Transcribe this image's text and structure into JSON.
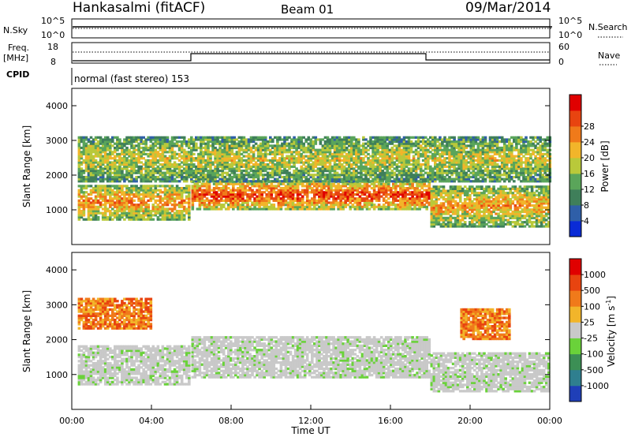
{
  "header": {
    "station": "Hankasalmi (fitACF)",
    "beam": "Beam 01",
    "date": "09/Mar/2014"
  },
  "aux_panels": {
    "nsky_label": "N.Sky",
    "nsky_ticks": [
      "10^5",
      "10^0"
    ],
    "nsearch_label": "N.Search",
    "nsearch_ticks": [
      "10^5",
      "10^0"
    ],
    "freq_label": "Freq.",
    "freq_unit": "[MHz]",
    "freq_ticks": [
      "18",
      "8"
    ],
    "nave_label": "Nave",
    "nave_ticks": [
      "60",
      "0"
    ],
    "cpid_label": "CPID",
    "cpid_text": "normal (fast stereo) 153"
  },
  "chart_data": [
    {
      "type": "heatmap",
      "name": "power",
      "ylabel": "Slant Range [km]",
      "xlabel": "",
      "ylim": [
        0,
        4500
      ],
      "yticks": [
        "1000",
        "2000",
        "3000",
        "4000"
      ],
      "ytick_values": [
        1000,
        2000,
        3000,
        4000
      ],
      "xlim": [
        0,
        24
      ],
      "colorbar": {
        "label": "Power [dB]",
        "ticks": [
          "4",
          "8",
          "12",
          "16",
          "20",
          "24",
          "28"
        ],
        "colors": [
          "#0a2bd6",
          "#2f5fa8",
          "#3f7f5a",
          "#5aa55a",
          "#b9c93a",
          "#f2b52a",
          "#f07a1a",
          "#e84410",
          "#e00000"
        ]
      },
      "bands": [
        {
          "x": [
            0.3,
            5.9
          ],
          "y": [
            700,
            1700
          ],
          "level": 0.75
        },
        {
          "x": [
            6.0,
            17.9
          ],
          "y": [
            1000,
            1800
          ],
          "level": 0.92
        },
        {
          "x": [
            18.0,
            24.0
          ],
          "y": [
            500,
            1700
          ],
          "level": 0.7
        },
        {
          "x": [
            0.3,
            24.0
          ],
          "y": [
            1800,
            3100
          ],
          "level": 0.55
        }
      ]
    },
    {
      "type": "heatmap",
      "name": "velocity",
      "ylabel": "Slant Range [km]",
      "xlabel": "Time UT",
      "ylim": [
        0,
        4500
      ],
      "yticks": [
        "1000",
        "2000",
        "3000",
        "4000"
      ],
      "ytick_values": [
        1000,
        2000,
        3000,
        4000
      ],
      "xlim": [
        0,
        24
      ],
      "xticks": [
        "00:00",
        "04:00",
        "08:00",
        "12:00",
        "16:00",
        "20:00",
        "00:00"
      ],
      "xtick_values": [
        0,
        4,
        8,
        12,
        16,
        20,
        24
      ],
      "colorbar": {
        "label": "Velocity [m s",
        "label_exp": "-1",
        "label_end": "]",
        "ticks": [
          "1000",
          "500",
          "100",
          "25",
          "-25",
          "-100",
          "-500",
          "-1000"
        ],
        "colors": [
          "#1f3fb8",
          "#2f7f8f",
          "#3c8f55",
          "#6ad23a",
          "#c9c9c9",
          "#f2b52a",
          "#f07a1a",
          "#e84410",
          "#e00000"
        ]
      },
      "bands": [
        {
          "x": [
            0.3,
            5.9
          ],
          "y": [
            700,
            1800
          ],
          "level": 0.55
        },
        {
          "x": [
            6.0,
            17.9
          ],
          "y": [
            900,
            2100
          ],
          "level": 0.45
        },
        {
          "x": [
            18.0,
            24.0
          ],
          "y": [
            500,
            1600
          ],
          "level": 0.5
        },
        {
          "x": [
            0.3,
            4.0
          ],
          "y": [
            2300,
            3200
          ],
          "level": 0.85
        },
        {
          "x": [
            19.5,
            22.0
          ],
          "y": [
            2000,
            2900
          ],
          "level": 0.85
        }
      ]
    }
  ],
  "colors": {
    "background": "#ffffff",
    "axes": "#000000"
  }
}
